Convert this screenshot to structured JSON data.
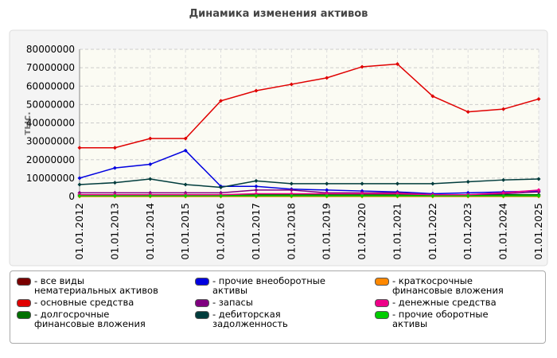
{
  "chart_data": {
    "type": "line",
    "title": "Динамика изменения активов",
    "y_label": "тыс.",
    "categories": [
      "01.01.2012",
      "01.01.2013",
      "01.01.2014",
      "01.01.2015",
      "01.01.2016",
      "01.01.2017",
      "01.01.2018",
      "01.01.2019",
      "01.01.2020",
      "01.01.2021",
      "01.01.2022",
      "01.01.2023",
      "01.01.2024",
      "01.01.2025"
    ],
    "ylim": [
      0,
      80000000
    ],
    "yticks": [
      0,
      10000000,
      20000000,
      30000000,
      40000000,
      50000000,
      60000000,
      70000000,
      80000000
    ],
    "grid": true,
    "series": [
      {
        "name": "- все виды нематериальных активов",
        "color": "#7a0000",
        "values": [
          500000,
          500000,
          500000,
          500000,
          500000,
          500000,
          500000,
          500000,
          500000,
          500000,
          500000,
          500000,
          500000,
          500000
        ]
      },
      {
        "name": "- основные средства",
        "color": "#e00000",
        "values": [
          26500000,
          26500000,
          31500000,
          31500000,
          52000000,
          57500000,
          61000000,
          64500000,
          70500000,
          72000000,
          54500000,
          46000000,
          47500000,
          53000000
        ]
      },
      {
        "name": "- долгосрочные финансовые вложения",
        "color": "#007000",
        "values": [
          1000000,
          1000000,
          1000000,
          1000000,
          1000000,
          1000000,
          1000000,
          1000000,
          1000000,
          1000000,
          1000000,
          1000000,
          1000000,
          1000000
        ]
      },
      {
        "name": "- прочие внеоборотные активы",
        "color": "#0000e0",
        "values": [
          10000000,
          15500000,
          17500000,
          25000000,
          5500000,
          5500000,
          4000000,
          3500000,
          3000000,
          2500000,
          1500000,
          2000000,
          2500000,
          3000000
        ]
      },
      {
        "name": "- запасы",
        "color": "#800080",
        "values": [
          2000000,
          2000000,
          2000000,
          2000000,
          2000000,
          3500000,
          3500000,
          2000000,
          2000000,
          2000000,
          1000000,
          1000000,
          1500000,
          2500000
        ]
      },
      {
        "name": "- дебиторская задолженность",
        "color": "#003c3c",
        "values": [
          6500000,
          7500000,
          9500000,
          6500000,
          5000000,
          8500000,
          7000000,
          7000000,
          7000000,
          7000000,
          7000000,
          8000000,
          9000000,
          9500000
        ]
      },
      {
        "name": "- краткосрочные финансовые вложения",
        "color": "#ff8800",
        "values": [
          0,
          0,
          0,
          0,
          0,
          0,
          0,
          0,
          0,
          0,
          0,
          0,
          0,
          0
        ]
      },
      {
        "name": "- денежные средства",
        "color": "#ee0088",
        "values": [
          1000000,
          1000000,
          1000000,
          1000000,
          1000000,
          1500000,
          1500000,
          1500000,
          1500000,
          1500000,
          1000000,
          1000000,
          2000000,
          3500000
        ]
      },
      {
        "name": "- прочие оборотные активы",
        "color": "#00cc00",
        "values": [
          300000,
          300000,
          300000,
          300000,
          300000,
          300000,
          300000,
          300000,
          300000,
          300000,
          300000,
          300000,
          300000,
          300000
        ]
      }
    ]
  }
}
